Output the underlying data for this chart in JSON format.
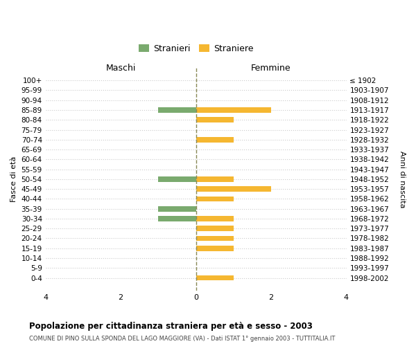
{
  "age_groups": [
    "100+",
    "95-99",
    "90-94",
    "85-89",
    "80-84",
    "75-79",
    "70-74",
    "65-69",
    "60-64",
    "55-59",
    "50-54",
    "45-49",
    "40-44",
    "35-39",
    "30-34",
    "25-29",
    "20-24",
    "15-19",
    "10-14",
    "5-9",
    "0-4"
  ],
  "birth_years": [
    "≤ 1902",
    "1903-1907",
    "1908-1912",
    "1913-1917",
    "1918-1922",
    "1923-1927",
    "1928-1932",
    "1933-1937",
    "1938-1942",
    "1943-1947",
    "1948-1952",
    "1953-1957",
    "1958-1962",
    "1963-1967",
    "1968-1972",
    "1973-1977",
    "1978-1982",
    "1983-1987",
    "1988-1992",
    "1993-1997",
    "1998-2002"
  ],
  "maschi_stranieri": [
    0,
    0,
    0,
    1,
    0,
    0,
    0,
    0,
    0,
    0,
    1,
    0,
    0,
    1,
    1,
    0,
    0,
    0,
    0,
    0,
    0
  ],
  "femmine_straniere": [
    0,
    0,
    0,
    2,
    1,
    0,
    1,
    0,
    0,
    0,
    1,
    2,
    1,
    0,
    1,
    1,
    1,
    1,
    0,
    0,
    1
  ],
  "color_maschi": "#7aaa6e",
  "color_femmine": "#f5b731",
  "title": "Popolazione per cittadinanza straniera per età e sesso - 2003",
  "subtitle": "COMUNE DI PINO SULLA SPONDA DEL LAGO MAGGIORE (VA) - Dati ISTAT 1° gennaio 2003 - TUTTITALIA.IT",
  "xlabel_left": "Maschi",
  "xlabel_right": "Femmine",
  "ylabel_left": "Fasce di età",
  "ylabel_right": "Anni di nascita",
  "legend_maschi": "Stranieri",
  "legend_femmine": "Straniere",
  "xlim": 4,
  "background_color": "#ffffff",
  "grid_color": "#cccccc"
}
